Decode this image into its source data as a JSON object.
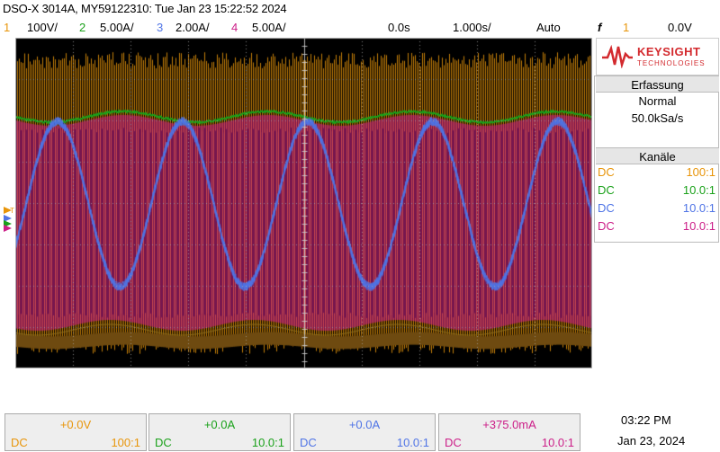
{
  "header": {
    "title": "DSO-X 3014A, MY59122310: Tue Jan 23 15:22:52 2024"
  },
  "channels_bar": {
    "ch1": {
      "num": "1",
      "scale": "100V/"
    },
    "ch2": {
      "num": "2",
      "scale": "5.00A/"
    },
    "ch3": {
      "num": "3",
      "scale": "2.00A/"
    },
    "ch4": {
      "num": "4",
      "scale": "5.00A/"
    },
    "time_delay": "0.0s",
    "time_scale": "1.000s/",
    "trigger_mode": "Auto",
    "trigger_symbol": "f",
    "trigger_channel": "1",
    "trigger_level": "0.0V"
  },
  "colors": {
    "ch1": "#e8950a",
    "ch2": "#1aa11a",
    "ch3": "#4f74e6",
    "ch4": "#cc1e88",
    "brand": "#d32a2e"
  },
  "brand": {
    "name": "KEYSIGHT",
    "sub": "TECHNOLOGIES",
    "icon": "keysight-wave-logo"
  },
  "acquisition": {
    "header": "Erfassung",
    "mode": "Normal",
    "rate": "50.0kSa/s"
  },
  "channels_panel": {
    "header": "Kanäle",
    "rows": [
      {
        "coupling": "DC",
        "probe": "100:1"
      },
      {
        "coupling": "DC",
        "probe": "10.0:1"
      },
      {
        "coupling": "DC",
        "probe": "10.0:1"
      },
      {
        "coupling": "DC",
        "probe": "10.0:1"
      }
    ]
  },
  "bottom": [
    {
      "offset": "+0.0V",
      "coupling": "DC",
      "probe": "100:1"
    },
    {
      "offset": "+0.0A",
      "coupling": "DC",
      "probe": "10.0:1"
    },
    {
      "offset": "+0.0A",
      "coupling": "DC",
      "probe": "10.0:1"
    },
    {
      "offset": "+375.0mA",
      "coupling": "DC",
      "probe": "10.0:1"
    }
  ],
  "clock": {
    "time": "03:22 PM",
    "date": "Jan 23, 2024"
  }
}
